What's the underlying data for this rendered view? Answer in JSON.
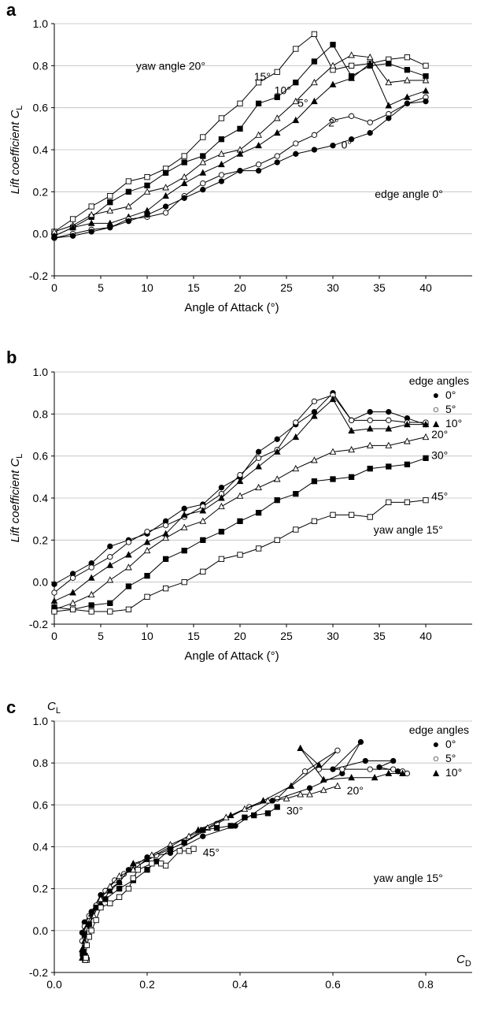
{
  "chart_data": [
    {
      "panel": "a",
      "type": "line",
      "ylabel": "Lift coefficient",
      "ylabel_sub": "C",
      "ylabel_subscript": "L",
      "xlabel": "Angle of Attack (°)",
      "xlim": [
        0,
        45
      ],
      "ylim": [
        -0.2,
        1.0
      ],
      "x_ticks": [
        0,
        5,
        10,
        15,
        20,
        25,
        30,
        35,
        40
      ],
      "y_ticks": [
        "-0.2",
        "0.0",
        "0.2",
        "0.4",
        "0.6",
        "0.8",
        "1.0"
      ],
      "grid": "horizontal",
      "annotation": "edge angle 0°",
      "series": [
        {
          "name": "yaw angle 20°",
          "marker": "square-open",
          "x": [
            0,
            2,
            4,
            6,
            8,
            10,
            12,
            14,
            16,
            18,
            20,
            22,
            24,
            26,
            28,
            30,
            32,
            34,
            36,
            38,
            40
          ],
          "y": [
            0.01,
            0.07,
            0.13,
            0.18,
            0.25,
            0.27,
            0.31,
            0.37,
            0.46,
            0.55,
            0.62,
            0.72,
            0.77,
            0.88,
            0.95,
            0.78,
            0.8,
            0.81,
            0.83,
            0.84,
            0.8
          ]
        },
        {
          "name": "15°",
          "marker": "square-filled",
          "x": [
            0,
            2,
            4,
            6,
            8,
            10,
            12,
            14,
            16,
            18,
            20,
            22,
            24,
            26,
            28,
            30,
            32,
            34,
            36,
            38,
            40
          ],
          "y": [
            -0.01,
            0.03,
            0.08,
            0.15,
            0.2,
            0.23,
            0.29,
            0.34,
            0.37,
            0.45,
            0.5,
            0.62,
            0.65,
            0.72,
            0.82,
            0.9,
            0.75,
            0.8,
            0.81,
            0.78,
            0.75
          ]
        },
        {
          "name": "10°",
          "marker": "triangle-open",
          "x": [
            0,
            2,
            4,
            6,
            8,
            10,
            12,
            14,
            16,
            18,
            20,
            22,
            24,
            26,
            28,
            30,
            32,
            34,
            36,
            38,
            40
          ],
          "y": [
            0.01,
            0.04,
            0.09,
            0.11,
            0.13,
            0.2,
            0.22,
            0.27,
            0.34,
            0.38,
            0.4,
            0.47,
            0.55,
            0.63,
            0.72,
            0.8,
            0.85,
            0.84,
            0.72,
            0.73,
            0.73
          ]
        },
        {
          "name": "5°",
          "marker": "triangle-filled",
          "x": [
            0,
            2,
            4,
            6,
            8,
            10,
            12,
            14,
            16,
            18,
            20,
            22,
            24,
            26,
            28,
            30,
            32,
            34,
            36,
            38,
            40
          ],
          "y": [
            -0.01,
            0.03,
            0.05,
            0.05,
            0.08,
            0.11,
            0.18,
            0.24,
            0.29,
            0.33,
            0.38,
            0.42,
            0.48,
            0.54,
            0.63,
            0.71,
            0.74,
            0.81,
            0.61,
            0.65,
            0.68
          ]
        },
        {
          "name": "2°",
          "marker": "circle-open",
          "x": [
            0,
            2,
            4,
            6,
            8,
            10,
            12,
            14,
            16,
            18,
            20,
            22,
            24,
            26,
            28,
            30,
            32,
            34,
            36,
            38,
            40
          ],
          "y": [
            -0.02,
            0.0,
            0.02,
            0.03,
            0.07,
            0.08,
            0.1,
            0.18,
            0.24,
            0.28,
            0.3,
            0.33,
            0.37,
            0.43,
            0.47,
            0.54,
            0.56,
            0.53,
            0.57,
            0.62,
            0.65
          ]
        },
        {
          "name": "0°",
          "marker": "circle-filled",
          "x": [
            0,
            2,
            4,
            6,
            8,
            10,
            12,
            14,
            16,
            18,
            20,
            22,
            24,
            26,
            28,
            30,
            32,
            34,
            36,
            38,
            40
          ],
          "y": [
            -0.02,
            -0.01,
            0.01,
            0.03,
            0.06,
            0.09,
            0.13,
            0.17,
            0.21,
            0.25,
            0.3,
            0.3,
            0.34,
            0.38,
            0.4,
            0.42,
            0.45,
            0.48,
            0.55,
            0.62,
            0.63
          ]
        }
      ],
      "labels": [
        {
          "text": "yaw angle 20°",
          "x": 8.8,
          "y": 0.78
        },
        {
          "text": "15°",
          "x": 21.5,
          "y": 0.73
        },
        {
          "text": "10°",
          "x": 23.7,
          "y": 0.665
        },
        {
          "text": "5°",
          "x": 26.2,
          "y": 0.605
        },
        {
          "text": "2°",
          "x": 29.5,
          "y": 0.51
        },
        {
          "text": "0°",
          "x": 30.9,
          "y": 0.405
        }
      ]
    },
    {
      "panel": "b",
      "type": "line",
      "ylabel": "Lift coefficient",
      "ylabel_sub": "C",
      "ylabel_subscript": "L",
      "xlabel": "Angle of Attack (°)",
      "xlim": [
        0,
        45
      ],
      "ylim": [
        -0.2,
        1.0
      ],
      "x_ticks": [
        0,
        5,
        10,
        15,
        20,
        25,
        30,
        35,
        40
      ],
      "y_ticks": [
        "-0.2",
        "0.0",
        "0.2",
        "0.4",
        "0.6",
        "0.8",
        "1.0"
      ],
      "grid": "horizontal",
      "annotation": "yaw angle 15°",
      "legend_title": "edge angles",
      "legend": [
        {
          "symbol": "●",
          "label": "0°"
        },
        {
          "symbol": "○",
          "label": "5°"
        },
        {
          "symbol": "▲",
          "label": "10°"
        }
      ],
      "series": [
        {
          "name": "0°",
          "marker": "circle-filled",
          "x": [
            0,
            2,
            4,
            6,
            8,
            10,
            12,
            14,
            16,
            18,
            20,
            22,
            24,
            26,
            28,
            30,
            32,
            34,
            36,
            38,
            40
          ],
          "y": [
            -0.01,
            0.04,
            0.09,
            0.17,
            0.2,
            0.23,
            0.29,
            0.35,
            0.37,
            0.45,
            0.5,
            0.62,
            0.68,
            0.75,
            0.81,
            0.9,
            0.77,
            0.81,
            0.81,
            0.78,
            0.75
          ]
        },
        {
          "name": "5°",
          "marker": "circle-open",
          "x": [
            0,
            2,
            4,
            6,
            8,
            10,
            12,
            14,
            16,
            18,
            20,
            22,
            24,
            26,
            28,
            30,
            32,
            34,
            36,
            38,
            40
          ],
          "y": [
            -0.05,
            0.02,
            0.07,
            0.12,
            0.19,
            0.24,
            0.27,
            0.31,
            0.36,
            0.42,
            0.51,
            0.59,
            0.63,
            0.76,
            0.86,
            0.89,
            0.77,
            0.77,
            0.77,
            0.76,
            0.76
          ]
        },
        {
          "name": "10°",
          "marker": "triangle-filled",
          "x": [
            0,
            2,
            4,
            6,
            8,
            10,
            12,
            14,
            16,
            18,
            20,
            22,
            24,
            26,
            28,
            30,
            32,
            34,
            36,
            38,
            40
          ],
          "y": [
            -0.09,
            -0.05,
            0.02,
            0.08,
            0.13,
            0.19,
            0.23,
            0.32,
            0.34,
            0.4,
            0.48,
            0.55,
            0.62,
            0.69,
            0.79,
            0.87,
            0.72,
            0.73,
            0.73,
            0.75,
            0.75
          ]
        },
        {
          "name": "20°",
          "marker": "triangle-open",
          "x": [
            0,
            2,
            4,
            6,
            8,
            10,
            12,
            14,
            16,
            18,
            20,
            22,
            24,
            26,
            28,
            30,
            32,
            34,
            36,
            38,
            40
          ],
          "y": [
            -0.13,
            -0.1,
            -0.06,
            0.01,
            0.07,
            0.15,
            0.21,
            0.26,
            0.29,
            0.36,
            0.41,
            0.45,
            0.49,
            0.54,
            0.58,
            0.62,
            0.63,
            0.65,
            0.65,
            0.67,
            0.69
          ]
        },
        {
          "name": "30°",
          "marker": "square-filled",
          "x": [
            0,
            2,
            4,
            6,
            8,
            10,
            12,
            14,
            16,
            18,
            20,
            22,
            24,
            26,
            28,
            30,
            32,
            34,
            36,
            38,
            40
          ],
          "y": [
            -0.12,
            -0.13,
            -0.11,
            -0.1,
            -0.02,
            0.03,
            0.11,
            0.15,
            0.2,
            0.24,
            0.29,
            0.33,
            0.39,
            0.42,
            0.48,
            0.49,
            0.5,
            0.54,
            0.55,
            0.56,
            0.59
          ]
        },
        {
          "name": "45°",
          "marker": "square-open",
          "x": [
            0,
            2,
            4,
            6,
            8,
            10,
            12,
            14,
            16,
            18,
            20,
            22,
            24,
            26,
            28,
            30,
            32,
            34,
            36,
            38,
            40
          ],
          "y": [
            -0.14,
            -0.13,
            -0.14,
            -0.14,
            -0.13,
            -0.07,
            -0.03,
            0.0,
            0.05,
            0.11,
            0.13,
            0.16,
            0.2,
            0.25,
            0.29,
            0.32,
            0.32,
            0.31,
            0.38,
            0.38,
            0.39
          ]
        }
      ],
      "labels": [
        {
          "text": "20°",
          "x": 40.6,
          "y": 0.685
        },
        {
          "text": "30°",
          "x": 40.6,
          "y": 0.585
        },
        {
          "text": "45°",
          "x": 40.6,
          "y": 0.39
        }
      ]
    },
    {
      "panel": "c",
      "type": "line",
      "ylabel_sub": "C",
      "ylabel_subscript": "L",
      "xlabel_sub": "C",
      "xlabel_subscript": "D",
      "xlim": [
        0,
        0.9
      ],
      "ylim": [
        -0.2,
        1.0
      ],
      "x_ticks": [
        "0.0",
        "0.2",
        "0.4",
        "0.6",
        "0.8"
      ],
      "y_ticks": [
        "-0.2",
        "0.0",
        "0.2",
        "0.4",
        "0.6",
        "0.8",
        "1.0"
      ],
      "grid": "horizontal",
      "annotation": "yaw angle 15°",
      "legend_title": "edge angles",
      "legend": [
        {
          "symbol": "●",
          "label": "0°"
        },
        {
          "symbol": "○",
          "label": "5°"
        },
        {
          "symbol": "▲",
          "label": "10°"
        }
      ],
      "series": [
        {
          "name": "0°",
          "marker": "circle-filled",
          "x": [
            0.06,
            0.065,
            0.08,
            0.1,
            0.12,
            0.14,
            0.16,
            0.2,
            0.25,
            0.32,
            0.39,
            0.47,
            0.55,
            0.62,
            0.66,
            0.6,
            0.67,
            0.73,
            0.7,
            0.74,
            0.75
          ],
          "y": [
            -0.01,
            0.04,
            0.09,
            0.17,
            0.2,
            0.23,
            0.29,
            0.35,
            0.37,
            0.45,
            0.5,
            0.62,
            0.68,
            0.75,
            0.9,
            0.77,
            0.81,
            0.81,
            0.78,
            0.76,
            0.75
          ]
        },
        {
          "name": "5°",
          "marker": "circle-open",
          "x": [
            0.06,
            0.065,
            0.075,
            0.09,
            0.11,
            0.13,
            0.15,
            0.18,
            0.22,
            0.28,
            0.35,
            0.42,
            0.48,
            0.54,
            0.61,
            0.57,
            0.62,
            0.68,
            0.73,
            0.75,
            0.76
          ],
          "y": [
            -0.05,
            0.02,
            0.07,
            0.12,
            0.19,
            0.24,
            0.27,
            0.31,
            0.36,
            0.42,
            0.51,
            0.59,
            0.63,
            0.76,
            0.86,
            0.77,
            0.77,
            0.77,
            0.77,
            0.76,
            0.75
          ]
        },
        {
          "name": "10°",
          "marker": "triangle-filled",
          "x": [
            0.06,
            0.065,
            0.07,
            0.08,
            0.1,
            0.12,
            0.14,
            0.17,
            0.2,
            0.25,
            0.31,
            0.38,
            0.45,
            0.51,
            0.57,
            0.53,
            0.58,
            0.64,
            0.69,
            0.72,
            0.75
          ],
          "y": [
            -0.09,
            -0.05,
            0.02,
            0.08,
            0.13,
            0.19,
            0.23,
            0.32,
            0.34,
            0.4,
            0.48,
            0.55,
            0.62,
            0.69,
            0.79,
            0.87,
            0.72,
            0.73,
            0.73,
            0.75,
            0.75
          ]
        },
        {
          "name": "20°",
          "marker": "triangle-open",
          "x": [
            0.06,
            0.063,
            0.066,
            0.07,
            0.085,
            0.1,
            0.12,
            0.14,
            0.17,
            0.21,
            0.25,
            0.29,
            0.33,
            0.37,
            0.41,
            0.46,
            0.5,
            0.53,
            0.55,
            0.58,
            0.61
          ],
          "y": [
            -0.13,
            -0.1,
            -0.06,
            0.01,
            0.07,
            0.15,
            0.21,
            0.26,
            0.29,
            0.36,
            0.41,
            0.45,
            0.49,
            0.54,
            0.58,
            0.62,
            0.63,
            0.65,
            0.65,
            0.67,
            0.69
          ]
        },
        {
          "name": "30°",
          "marker": "square-filled",
          "x": [
            0.066,
            0.062,
            0.061,
            0.062,
            0.065,
            0.075,
            0.09,
            0.11,
            0.14,
            0.17,
            0.2,
            0.22,
            0.25,
            0.28,
            0.32,
            0.35,
            0.38,
            0.41,
            0.43,
            0.46,
            0.48
          ],
          "y": [
            -0.12,
            -0.13,
            -0.11,
            -0.1,
            -0.02,
            0.03,
            0.11,
            0.15,
            0.2,
            0.24,
            0.29,
            0.33,
            0.39,
            0.42,
            0.48,
            0.49,
            0.5,
            0.54,
            0.55,
            0.56,
            0.59
          ]
        },
        {
          "name": "45°",
          "marker": "square-open",
          "x": [
            0.07,
            0.068,
            0.066,
            0.067,
            0.068,
            0.07,
            0.075,
            0.08,
            0.09,
            0.1,
            0.12,
            0.14,
            0.16,
            0.17,
            0.18,
            0.21,
            0.23,
            0.24,
            0.27,
            0.29,
            0.3
          ],
          "y": [
            -0.14,
            -0.13,
            -0.14,
            -0.14,
            -0.13,
            -0.07,
            -0.03,
            0.0,
            0.05,
            0.11,
            0.13,
            0.16,
            0.2,
            0.25,
            0.29,
            0.32,
            0.32,
            0.31,
            0.38,
            0.38,
            0.39
          ]
        }
      ],
      "labels": [
        {
          "text": "20°",
          "x": 0.63,
          "y": 0.65
        },
        {
          "text": "30°",
          "x": 0.5,
          "y": 0.555
        },
        {
          "text": "45°",
          "x": 0.32,
          "y": 0.355
        }
      ]
    }
  ]
}
